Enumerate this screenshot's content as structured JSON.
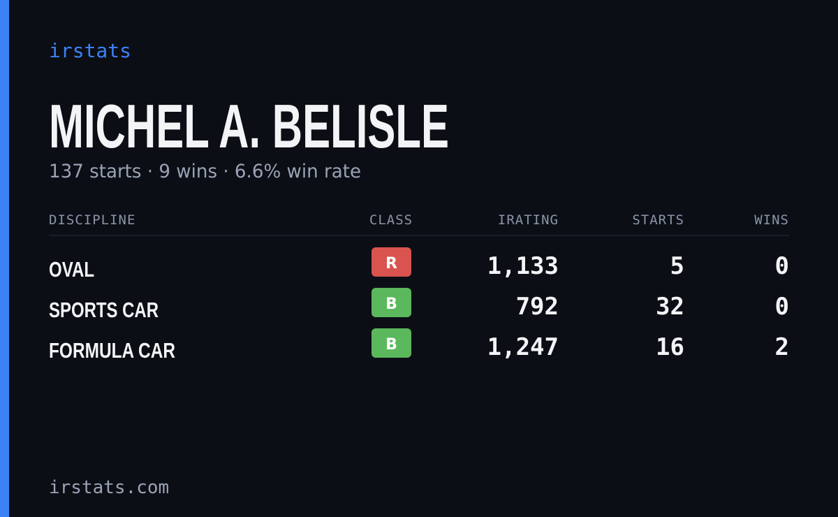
{
  "brand": "irstats",
  "profile": {
    "name": "MICHEL A. BELISLE",
    "summary": "137 starts · 9 wins · 6.6% win rate"
  },
  "table": {
    "columns": [
      "DISCIPLINE",
      "CLASS",
      "IRATING",
      "STARTS",
      "WINS"
    ],
    "rows": [
      {
        "discipline": "OVAL",
        "class": "R",
        "class_color": "#d9534f",
        "irating": "1,133",
        "starts": "5",
        "wins": "0"
      },
      {
        "discipline": "SPORTS CAR",
        "class": "B",
        "class_color": "#5cb85c",
        "irating": "792",
        "starts": "32",
        "wins": "0"
      },
      {
        "discipline": "FORMULA CAR",
        "class": "B",
        "class_color": "#5cb85c",
        "irating": "1,247",
        "starts": "16",
        "wins": "2"
      }
    ]
  },
  "footer": "irstats.com"
}
